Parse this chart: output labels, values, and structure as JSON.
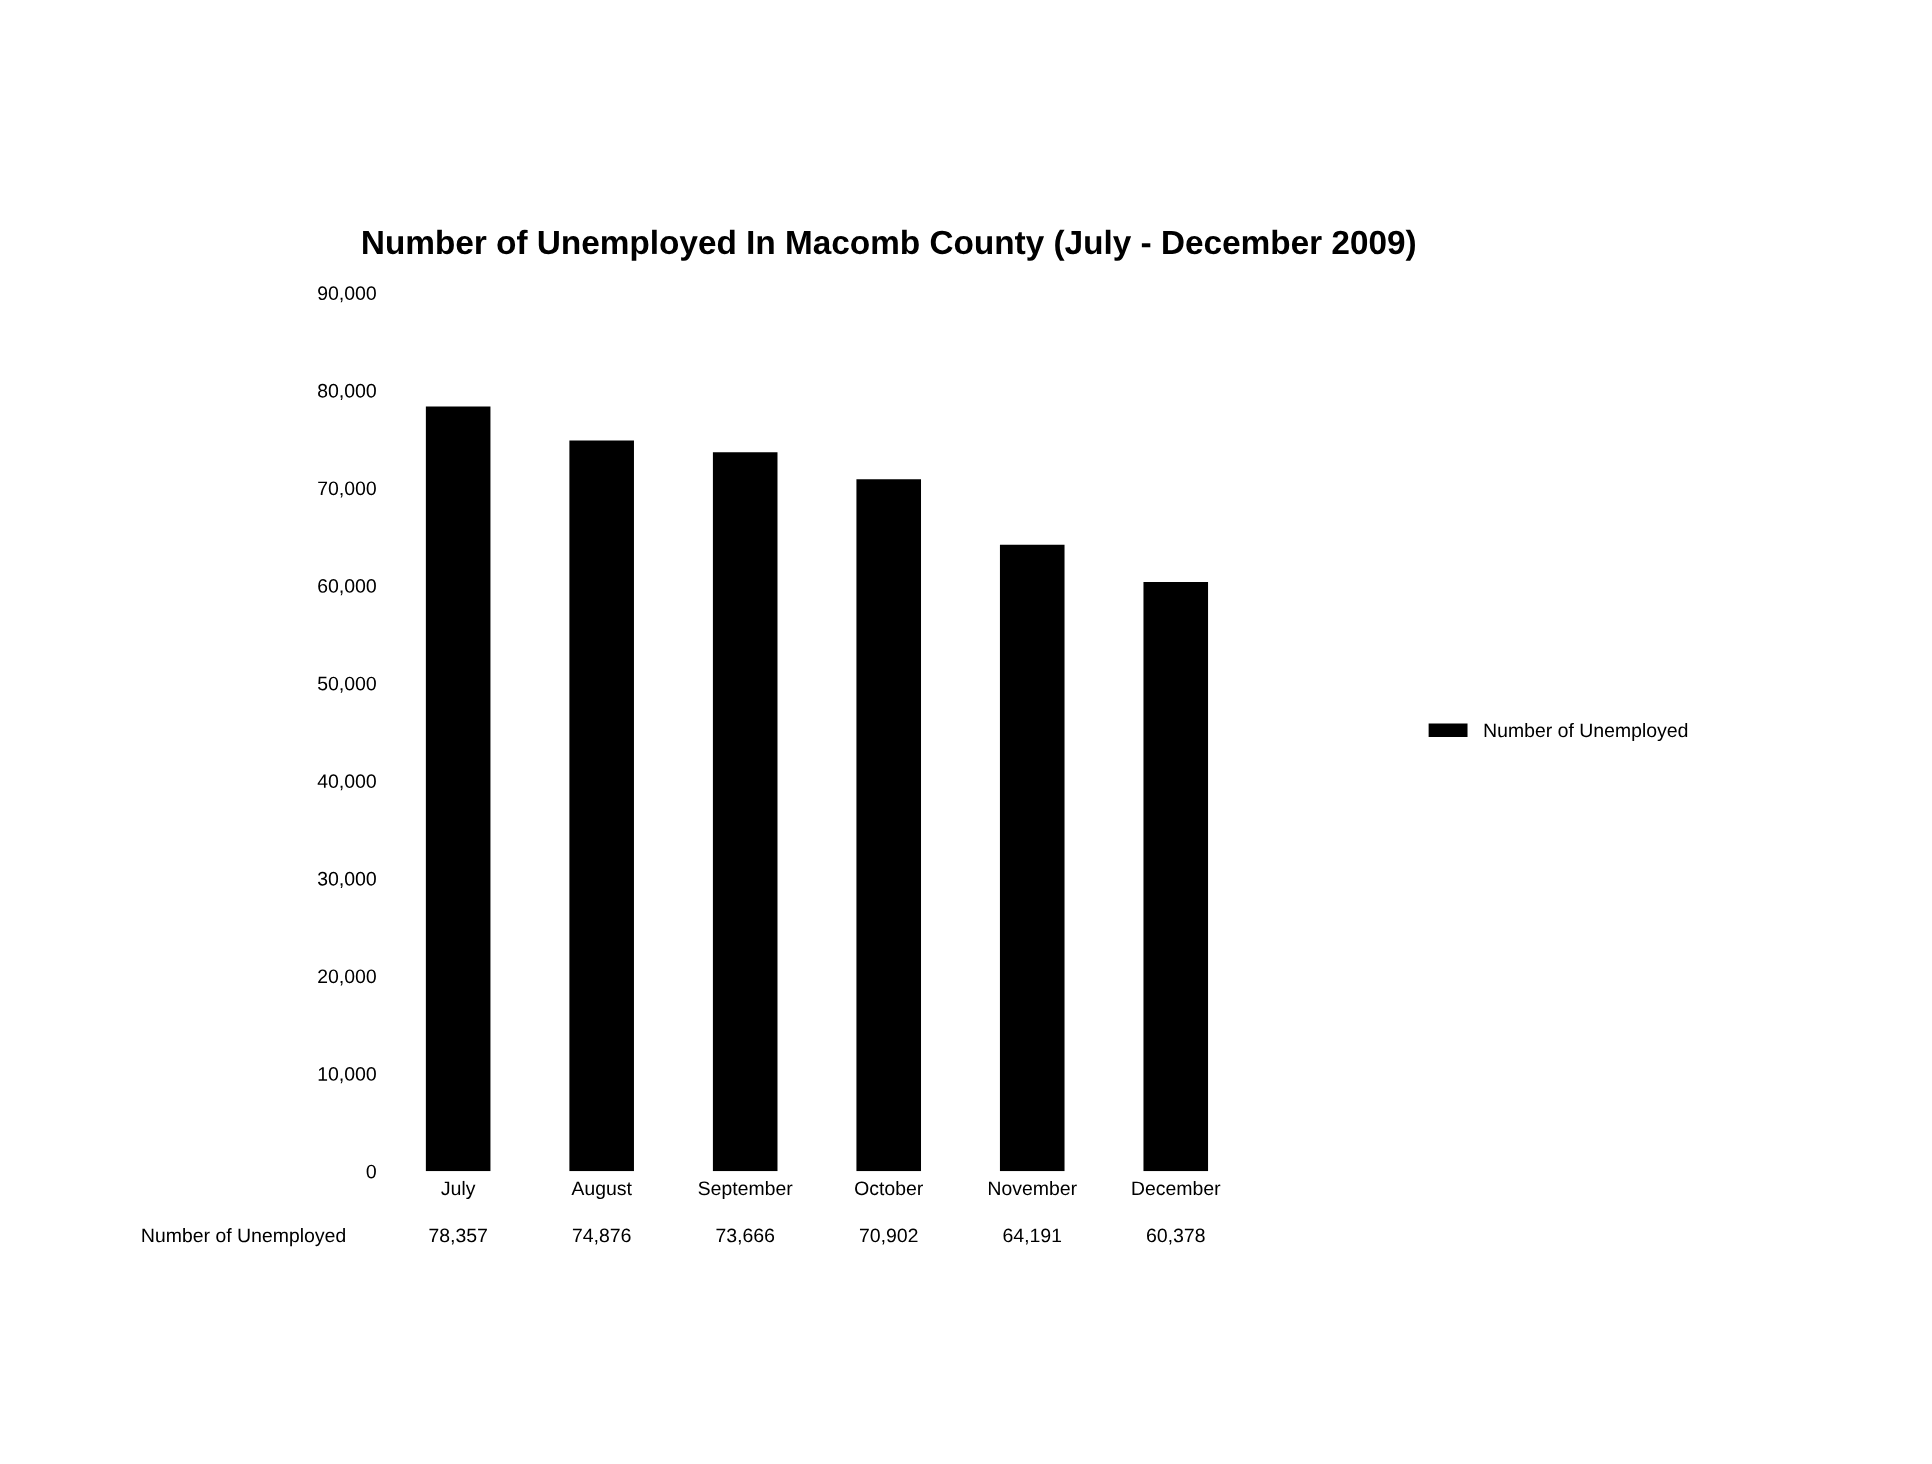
{
  "chart_data": {
    "type": "bar",
    "title": "Number of Unemployed In Macomb County (July - December 2009)",
    "categories": [
      "July",
      "August",
      "September",
      "October",
      "November",
      "December"
    ],
    "series": [
      {
        "name": "Number of Unemployed",
        "color": "#000000",
        "values": [
          78357,
          74876,
          73666,
          70902,
          64191,
          60378
        ],
        "value_labels": [
          "78,357",
          "74,876",
          "73,666",
          "70,902",
          "64,191",
          "60,378"
        ]
      }
    ],
    "ylim": [
      0,
      90000
    ],
    "yticks": [
      0,
      {
        "value": 10000,
        "label": "10,000"
      },
      {
        "value": 20000,
        "label": "20,000"
      },
      {
        "value": 30000,
        "label": "30,000"
      },
      {
        "value": 40000,
        "label": "40,000"
      },
      {
        "value": 50000,
        "label": "50,000"
      },
      {
        "value": 60000,
        "label": "60,000"
      },
      {
        "value": 70000,
        "label": "70,000"
      },
      {
        "value": 80000,
        "label": "80,000"
      },
      {
        "value": 90000,
        "label": "90,000"
      }
    ],
    "legend": "right",
    "grid": false
  }
}
